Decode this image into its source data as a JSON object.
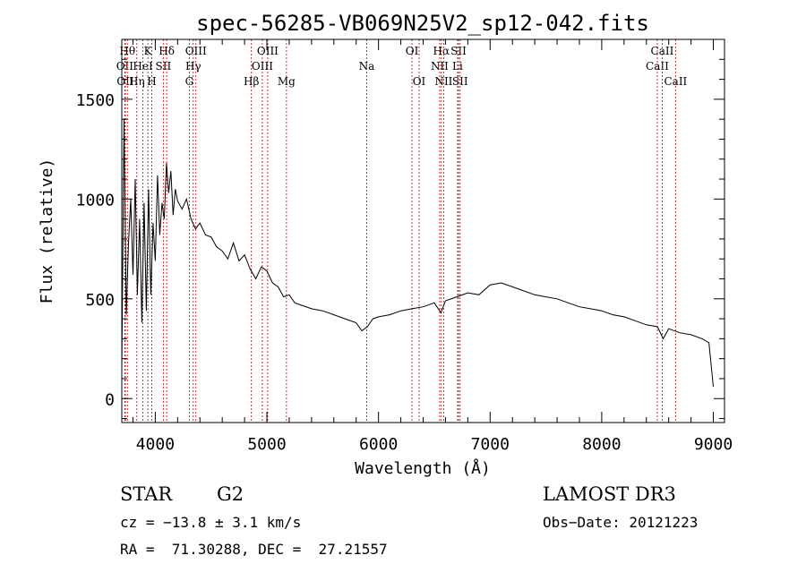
{
  "chart_data": {
    "type": "line",
    "title": "spec-56285-VB069N25V2_sp12-042.fits",
    "xlabel": "Wavelength (Å)",
    "ylabel": "Flux (relative)",
    "xlim": [
      3700,
      9100
    ],
    "ylim": [
      -120,
      1800
    ],
    "x_ticks": [
      4000,
      5000,
      6000,
      7000,
      8000,
      9000
    ],
    "y_ticks": [
      0,
      500,
      1000,
      1500
    ],
    "grid": false,
    "series": [
      {
        "name": "flux",
        "x": [
          3700,
          3720,
          3740,
          3760,
          3780,
          3800,
          3820,
          3840,
          3860,
          3880,
          3900,
          3920,
          3940,
          3960,
          3980,
          4000,
          4020,
          4040,
          4060,
          4080,
          4100,
          4120,
          4140,
          4160,
          4180,
          4200,
          4240,
          4280,
          4320,
          4360,
          4400,
          4450,
          4500,
          4550,
          4600,
          4650,
          4700,
          4750,
          4800,
          4850,
          4900,
          4950,
          5000,
          5050,
          5100,
          5150,
          5200,
          5250,
          5300,
          5400,
          5500,
          5600,
          5700,
          5800,
          5850,
          5900,
          5950,
          6000,
          6100,
          6200,
          6300,
          6400,
          6500,
          6560,
          6600,
          6700,
          6800,
          6900,
          7000,
          7100,
          7200,
          7300,
          7400,
          7500,
          7600,
          7700,
          7800,
          7900,
          8000,
          8100,
          8200,
          8300,
          8400,
          8500,
          8550,
          8600,
          8700,
          8800,
          8900,
          8960,
          9000
        ],
        "values": [
          150,
          1400,
          420,
          780,
          1000,
          620,
          1100,
          520,
          900,
          380,
          980,
          440,
          1050,
          520,
          880,
          690,
          1120,
          820,
          980,
          900,
          1180,
          1030,
          1140,
          920,
          1050,
          990,
          950,
          1000,
          900,
          850,
          880,
          820,
          810,
          760,
          740,
          700,
          780,
          690,
          720,
          650,
          600,
          660,
          640,
          580,
          560,
          510,
          520,
          480,
          470,
          450,
          440,
          420,
          400,
          380,
          340,
          360,
          400,
          410,
          420,
          440,
          450,
          460,
          480,
          430,
          490,
          510,
          530,
          520,
          570,
          580,
          560,
          540,
          520,
          510,
          500,
          480,
          460,
          450,
          440,
          420,
          410,
          390,
          370,
          360,
          300,
          350,
          330,
          320,
          300,
          280,
          60
        ]
      }
    ],
    "line_markers": [
      {
        "name": "OII",
        "x": 3727,
        "row": 2
      },
      {
        "name": "OII",
        "x": 3732,
        "row": 3
      },
      {
        "name": "Hθ",
        "x": 3750,
        "row": 1
      },
      {
        "name": "Hη",
        "x": 3835,
        "row": 3
      },
      {
        "name": "HeI",
        "x": 3889,
        "row": 2
      },
      {
        "name": "K",
        "x": 3934,
        "row": 1
      },
      {
        "name": "H",
        "x": 3969,
        "row": 3
      },
      {
        "name": "SII",
        "x": 4072,
        "row": 2
      },
      {
        "name": "Hδ",
        "x": 4102,
        "row": 1
      },
      {
        "name": "G",
        "x": 4305,
        "row": 3
      },
      {
        "name": "Hγ",
        "x": 4340,
        "row": 2
      },
      {
        "name": "OIII",
        "x": 4364,
        "row": 1
      },
      {
        "name": "Hβ",
        "x": 4861,
        "row": 3
      },
      {
        "name": "OIII",
        "x": 4959,
        "row": 2
      },
      {
        "name": "OIII",
        "x": 5007,
        "row": 1
      },
      {
        "name": "Mg",
        "x": 5175,
        "row": 3
      },
      {
        "name": "Na",
        "x": 5894,
        "row": 2
      },
      {
        "name": "OI",
        "x": 6300,
        "row": 1
      },
      {
        "name": "OI",
        "x": 6364,
        "row": 3
      },
      {
        "name": "NII",
        "x": 6548,
        "row": 2
      },
      {
        "name": "Hα",
        "x": 6563,
        "row": 1
      },
      {
        "name": "NII",
        "x": 6584,
        "row": 3
      },
      {
        "name": "Li",
        "x": 6708,
        "row": 2
      },
      {
        "name": "SII",
        "x": 6717,
        "row": 1
      },
      {
        "name": "SII",
        "x": 6731,
        "row": 3
      },
      {
        "name": "CaII",
        "x": 8498,
        "row": 2
      },
      {
        "name": "CaII",
        "x": 8542,
        "row": 1
      },
      {
        "name": "CaII",
        "x": 8662,
        "row": 3
      }
    ]
  },
  "info": {
    "class_label": "STAR",
    "subclass": "G2",
    "survey": "LAMOST DR3",
    "redshift": "cz = −13.8 ± 3.1 km/s",
    "obs_date": "Obs−Date: 20121223",
    "coords": "RA =  71.30288, DEC =  27.21557"
  },
  "colors": {
    "axis": "#000000",
    "spectrum": "#000000",
    "marker_line": "#b22222",
    "background": "#ffffff"
  }
}
